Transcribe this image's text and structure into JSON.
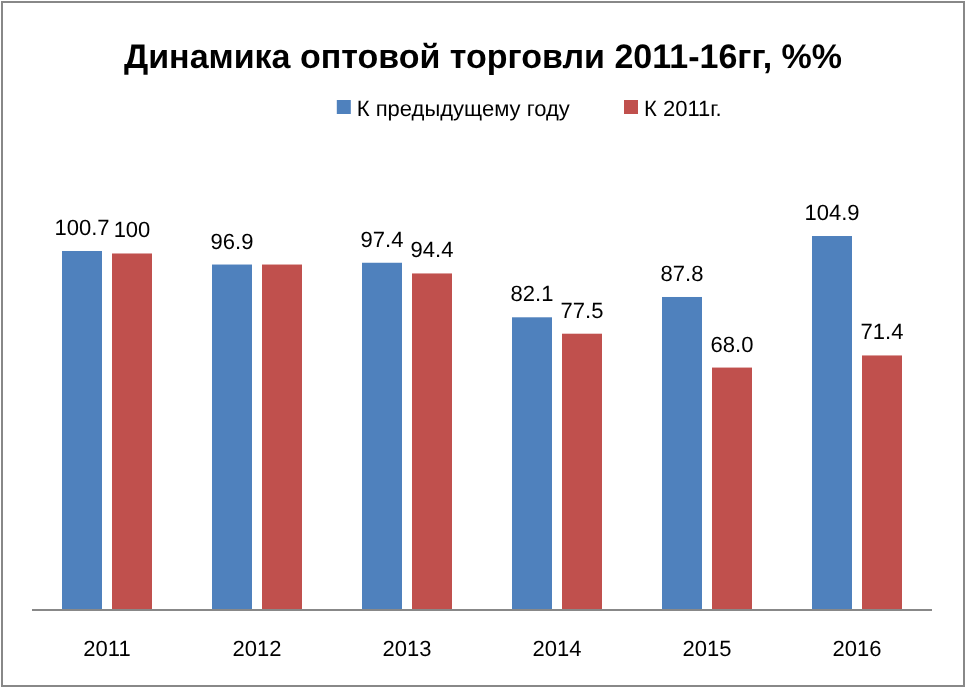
{
  "chart_data": {
    "type": "bar",
    "title": "Динамика оптовой торговли 2011-16гг, %%",
    "categories": [
      "2011",
      "2012",
      "2013",
      "2014",
      "2015",
      "2016"
    ],
    "series": [
      {
        "name": "К предыдущему году",
        "color": "#4f81bd",
        "values": [
          100.7,
          96.9,
          97.4,
          82.1,
          87.8,
          104.9
        ],
        "value_labels": [
          "100.7",
          "96.9",
          "97.4",
          "82.1",
          "87.8",
          "104.9"
        ]
      },
      {
        "name": "К 2011г.",
        "color": "#c0504d",
        "values": [
          100,
          96.9,
          94.4,
          77.5,
          68.0,
          71.4
        ],
        "value_labels": [
          "100",
          null,
          "94.4",
          "77.5",
          "68.0",
          "71.4"
        ]
      }
    ],
    "legend": "top",
    "grid": false
  }
}
